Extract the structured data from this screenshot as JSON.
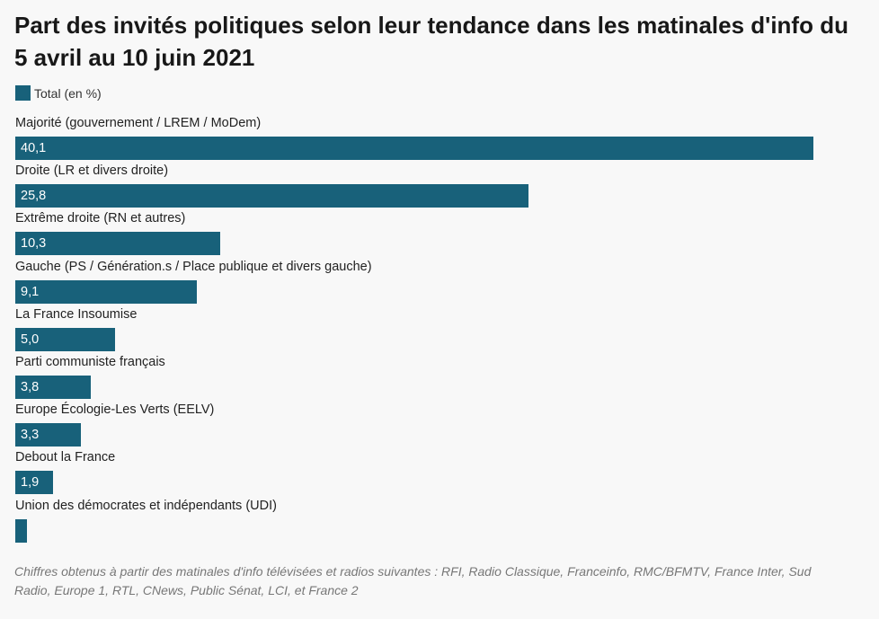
{
  "chart_data": {
    "type": "bar",
    "orientation": "horizontal",
    "title": "Part des invités politiques selon leur tendance dans les matinales d'info du 5 avril au 10 juin 2021",
    "legend": {
      "label": "Total (en %)",
      "color": "#18617a"
    },
    "categories": [
      "Majorité (gouvernement / LREM / MoDem)",
      "Droite (LR et divers droite)",
      "Extrême droite (RN et autres)",
      "Gauche (PS / Génération.s / Place publique et divers gauche)",
      "La France Insoumise",
      "Parti communiste français",
      "Europe Écologie-Les Verts (EELV)",
      "Debout la France",
      "Union des démocrates et indépendants (UDI)"
    ],
    "values": [
      40.1,
      25.8,
      10.3,
      9.1,
      5.0,
      3.8,
      3.3,
      1.9,
      0.6
    ],
    "value_labels": [
      "40,1",
      "25,8",
      "10,3",
      "9,1",
      "5,0",
      "3,8",
      "3,3",
      "1,9",
      ""
    ],
    "xlim": [
      0,
      40.1
    ],
    "grid": false
  },
  "footnote": "Chiffres obtenus à partir des matinales d'info télévisées et radios suivantes : RFI, Radio Classique, Franceinfo, RMC/BFMTV, France Inter, Sud Radio, Europe 1, RTL, CNews, Public Sénat, LCI, et France 2"
}
